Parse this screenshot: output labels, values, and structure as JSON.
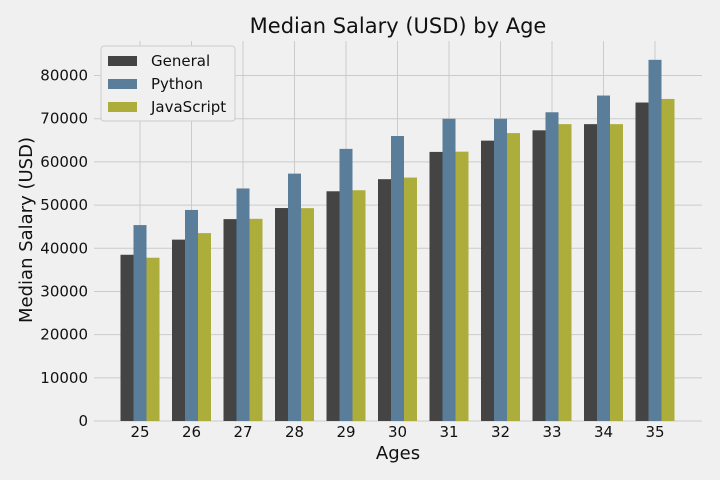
{
  "chart_data": {
    "type": "bar",
    "title": "Median Salary (USD) by Age",
    "xlabel": "Ages",
    "ylabel": "Median Salary (USD)",
    "categories": [
      "25",
      "26",
      "27",
      "28",
      "29",
      "30",
      "31",
      "32",
      "33",
      "34",
      "35"
    ],
    "series": [
      {
        "name": "General",
        "color": "#444444",
        "values": [
          38496,
          42000,
          46752,
          49320,
          53200,
          56000,
          62316,
          64928,
          67317,
          68748,
          73752
        ]
      },
      {
        "name": "Python",
        "color": "#5a7d9a",
        "values": [
          45372,
          48876,
          53850,
          57287,
          63016,
          65998,
          70003,
          70000,
          71496,
          75370,
          83640
        ]
      },
      {
        "name": "JavaScript",
        "color": "#adad3b",
        "values": [
          37810,
          43515,
          46823,
          49293,
          53437,
          56373,
          62375,
          66674,
          68745,
          68746,
          74583
        ]
      }
    ],
    "ylim": [
      0,
      88000
    ],
    "yticks": [
      0,
      10000,
      20000,
      30000,
      40000,
      50000,
      60000,
      70000,
      80000
    ],
    "grid": true,
    "legend_position": "top-left"
  }
}
